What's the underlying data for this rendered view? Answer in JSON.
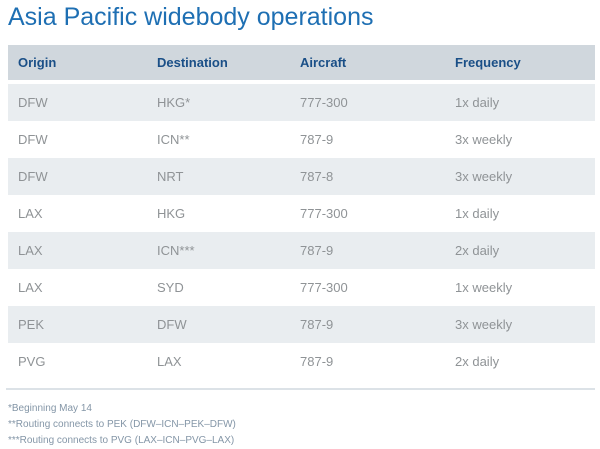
{
  "title": "Asia Pacific widebody operations",
  "table": {
    "columns": [
      "Origin",
      "Destination",
      "Aircraft",
      "Frequency"
    ],
    "rows": [
      [
        "DFW",
        "HKG*",
        "777-300",
        "1x daily"
      ],
      [
        "DFW",
        "ICN**",
        "787-9",
        "3x weekly"
      ],
      [
        "DFW",
        "NRT",
        "787-8",
        "3x weekly"
      ],
      [
        "LAX",
        "HKG",
        "777-300",
        "1x daily"
      ],
      [
        "LAX",
        "ICN***",
        "787-9",
        "2x daily"
      ],
      [
        "LAX",
        "SYD",
        "777-300",
        "1x weekly"
      ],
      [
        "PEK",
        "DFW",
        "787-9",
        "3x weekly"
      ],
      [
        "PVG",
        "LAX",
        "787-9",
        "2x daily"
      ]
    ]
  },
  "footnotes": [
    "*Beginning May 14",
    "**Routing connects to PEK (DFW–ICN–PEK–DFW)",
    "***Routing connects to PVG (LAX–ICN–PVG–LAX)"
  ],
  "colors": {
    "title_blue": "#1E6FB3",
    "header_background": "#D0D7DD",
    "header_text": "#1A4F87",
    "row_stripe": "#E9EDF0",
    "cell_text": "#8F9396",
    "footnote_text": "#8496A7",
    "divider": "#DCE2E7"
  }
}
